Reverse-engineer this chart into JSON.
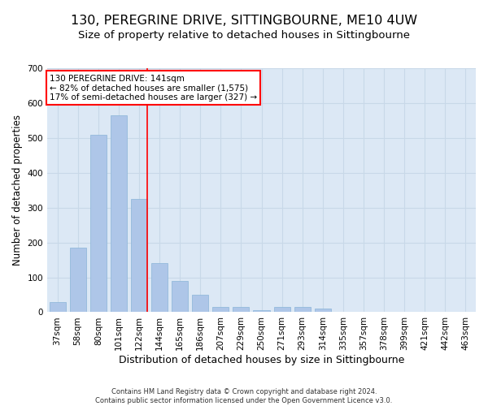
{
  "title": "130, PEREGRINE DRIVE, SITTINGBOURNE, ME10 4UW",
  "subtitle": "Size of property relative to detached houses in Sittingbourne",
  "xlabel": "Distribution of detached houses by size in Sittingbourne",
  "ylabel": "Number of detached properties",
  "footnote": "Contains HM Land Registry data © Crown copyright and database right 2024.\nContains public sector information licensed under the Open Government Licence v3.0.",
  "categories": [
    "37sqm",
    "58sqm",
    "80sqm",
    "101sqm",
    "122sqm",
    "144sqm",
    "165sqm",
    "186sqm",
    "207sqm",
    "229sqm",
    "250sqm",
    "271sqm",
    "293sqm",
    "314sqm",
    "335sqm",
    "357sqm",
    "378sqm",
    "399sqm",
    "421sqm",
    "442sqm",
    "463sqm"
  ],
  "values": [
    30,
    185,
    510,
    565,
    325,
    140,
    90,
    50,
    15,
    15,
    5,
    15,
    15,
    10,
    0,
    0,
    0,
    0,
    0,
    0,
    0
  ],
  "bar_color": "#aec6e8",
  "bar_edge_color": "#8ab4d8",
  "grid_color": "#c8d8e8",
  "background_color": "#dce8f5",
  "annotation_line1": "130 PEREGRINE DRIVE: 141sqm",
  "annotation_line2": "← 82% of detached houses are smaller (1,575)",
  "annotation_line3": "17% of semi-detached houses are larger (327) →",
  "ylim": [
    0,
    700
  ],
  "yticks": [
    0,
    100,
    200,
    300,
    400,
    500,
    600,
    700
  ],
  "title_fontsize": 11.5,
  "subtitle_fontsize": 9.5,
  "xlabel_fontsize": 9,
  "ylabel_fontsize": 8.5,
  "tick_fontsize": 7.5,
  "annot_fontsize": 7.5,
  "footnote_fontsize": 6
}
